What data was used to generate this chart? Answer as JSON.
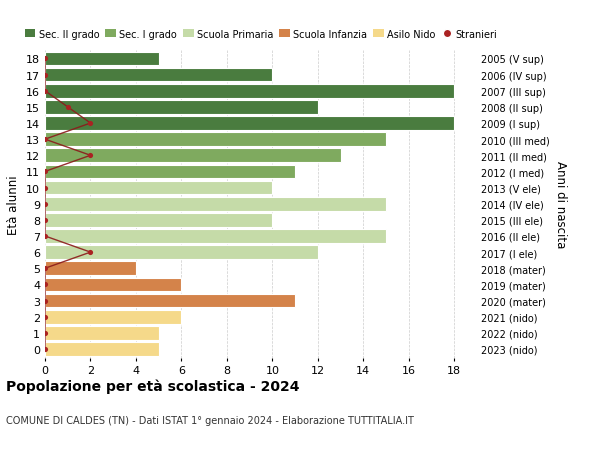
{
  "ages": [
    18,
    17,
    16,
    15,
    14,
    13,
    12,
    11,
    10,
    9,
    8,
    7,
    6,
    5,
    4,
    3,
    2,
    1,
    0
  ],
  "labels_right": [
    "2005 (V sup)",
    "2006 (IV sup)",
    "2007 (III sup)",
    "2008 (II sup)",
    "2009 (I sup)",
    "2010 (III med)",
    "2011 (II med)",
    "2012 (I med)",
    "2013 (V ele)",
    "2014 (IV ele)",
    "2015 (III ele)",
    "2016 (II ele)",
    "2017 (I ele)",
    "2018 (mater)",
    "2019 (mater)",
    "2020 (mater)",
    "2021 (nido)",
    "2022 (nido)",
    "2023 (nido)"
  ],
  "bar_values": [
    5,
    10,
    18,
    12,
    18,
    15,
    13,
    11,
    10,
    15,
    10,
    15,
    12,
    4,
    6,
    11,
    6,
    5,
    5
  ],
  "bar_colors": [
    "#4a7c3f",
    "#4a7c3f",
    "#4a7c3f",
    "#4a7c3f",
    "#4a7c3f",
    "#7faa5f",
    "#7faa5f",
    "#7faa5f",
    "#c5dba8",
    "#c5dba8",
    "#c5dba8",
    "#c5dba8",
    "#c5dba8",
    "#d4834a",
    "#d4834a",
    "#d4834a",
    "#f5d98a",
    "#f5d98a",
    "#f5d98a"
  ],
  "stranieri_x": [
    0,
    0,
    0,
    1,
    2,
    0,
    2,
    0,
    0,
    0,
    0,
    0,
    2,
    0,
    0,
    0,
    0,
    0,
    0
  ],
  "legend_labels": [
    "Sec. II grado",
    "Sec. I grado",
    "Scuola Primaria",
    "Scuola Infanzia",
    "Asilo Nido",
    "Stranieri"
  ],
  "legend_colors": [
    "#4a7c3f",
    "#7faa5f",
    "#c5dba8",
    "#d4834a",
    "#f5d98a",
    "#aa2222"
  ],
  "title": "Popolazione per età scolastica - 2024",
  "subtitle": "COMUNE DI CALDES (TN) - Dati ISTAT 1° gennaio 2024 - Elaborazione TUTTITALIA.IT",
  "ylabel": "Età alunni",
  "ylabel_right": "Anni di nascita",
  "xlim": [
    0,
    19
  ],
  "ylim": [
    -0.55,
    18.55
  ],
  "xticks": [
    0,
    2,
    4,
    6,
    8,
    10,
    12,
    14,
    16,
    18
  ],
  "bar_height": 0.85,
  "background_color": "#ffffff"
}
